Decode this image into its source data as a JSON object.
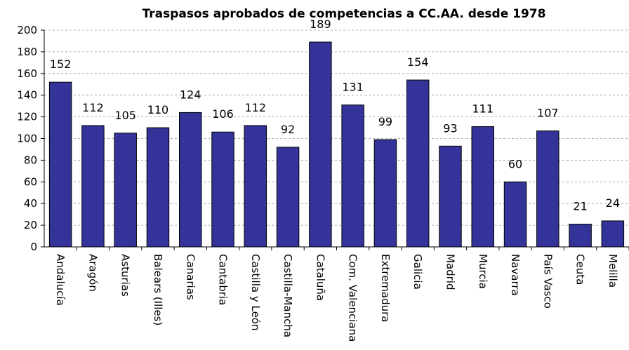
{
  "chart_data": {
    "type": "bar",
    "title": "Traspasos aprobados de competencias a CC.AA. desde 1978",
    "categories": [
      "Andalucía",
      "Aragón",
      "Asturias",
      "Balears (Illes)",
      "Canarias",
      "Cantabria",
      "Castilla y León",
      "Castilla-Mancha",
      "Cataluña",
      "Com. Valenciana",
      "Extremadura",
      "Galicia",
      "Madrid",
      "Murcia",
      "Navarra",
      "País Vasco",
      "Ceuta",
      "Melilla"
    ],
    "values": [
      152,
      112,
      105,
      110,
      124,
      106,
      112,
      92,
      189,
      131,
      99,
      154,
      93,
      111,
      60,
      107,
      21,
      24
    ],
    "color": "#333399",
    "ylim": [
      0,
      200
    ],
    "yticks": [
      0,
      20,
      40,
      60,
      80,
      100,
      120,
      140,
      160,
      180,
      200
    ],
    "grid": true
  }
}
